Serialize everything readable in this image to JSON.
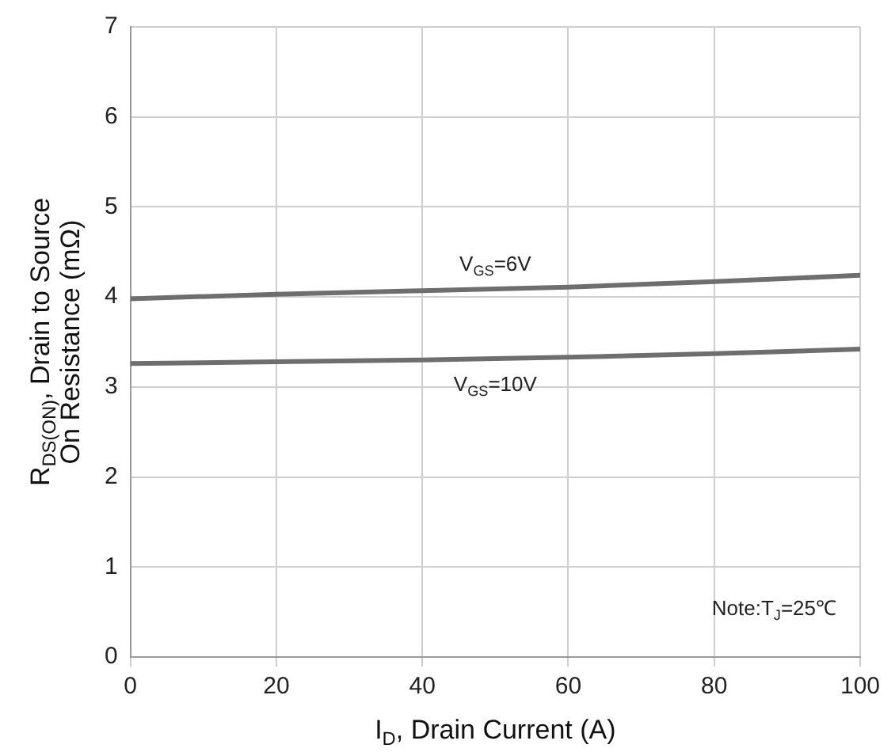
{
  "chart_data": {
    "type": "line",
    "xlabel": "I$_{D}$, Drain Current (A)",
    "ylabel": "R$_{DS(ON)}$, Drain to Source\nOn Resistance (mΩ)",
    "x": [
      0,
      20,
      40,
      60,
      80,
      100
    ],
    "series": [
      {
        "name": "V$_{GS}$=6V",
        "color": "#6e6e6e",
        "values": [
          3.98,
          4.03,
          4.07,
          4.11,
          4.17,
          4.24
        ]
      },
      {
        "name": "V$_{GS}$=10V",
        "color": "#6e6e6e",
        "values": [
          3.26,
          3.28,
          3.3,
          3.33,
          3.37,
          3.42
        ]
      }
    ],
    "xlim": [
      0,
      100
    ],
    "xticks": [
      0,
      20,
      40,
      60,
      80,
      100
    ],
    "ylim": [
      0,
      7
    ],
    "yticks": [
      0,
      1,
      2,
      3,
      4,
      5,
      6,
      7
    ],
    "grid": true,
    "legend": false,
    "marker": "none",
    "line_style": "solid",
    "annotations": [
      "Note:T$_{J}$=25℃"
    ]
  }
}
